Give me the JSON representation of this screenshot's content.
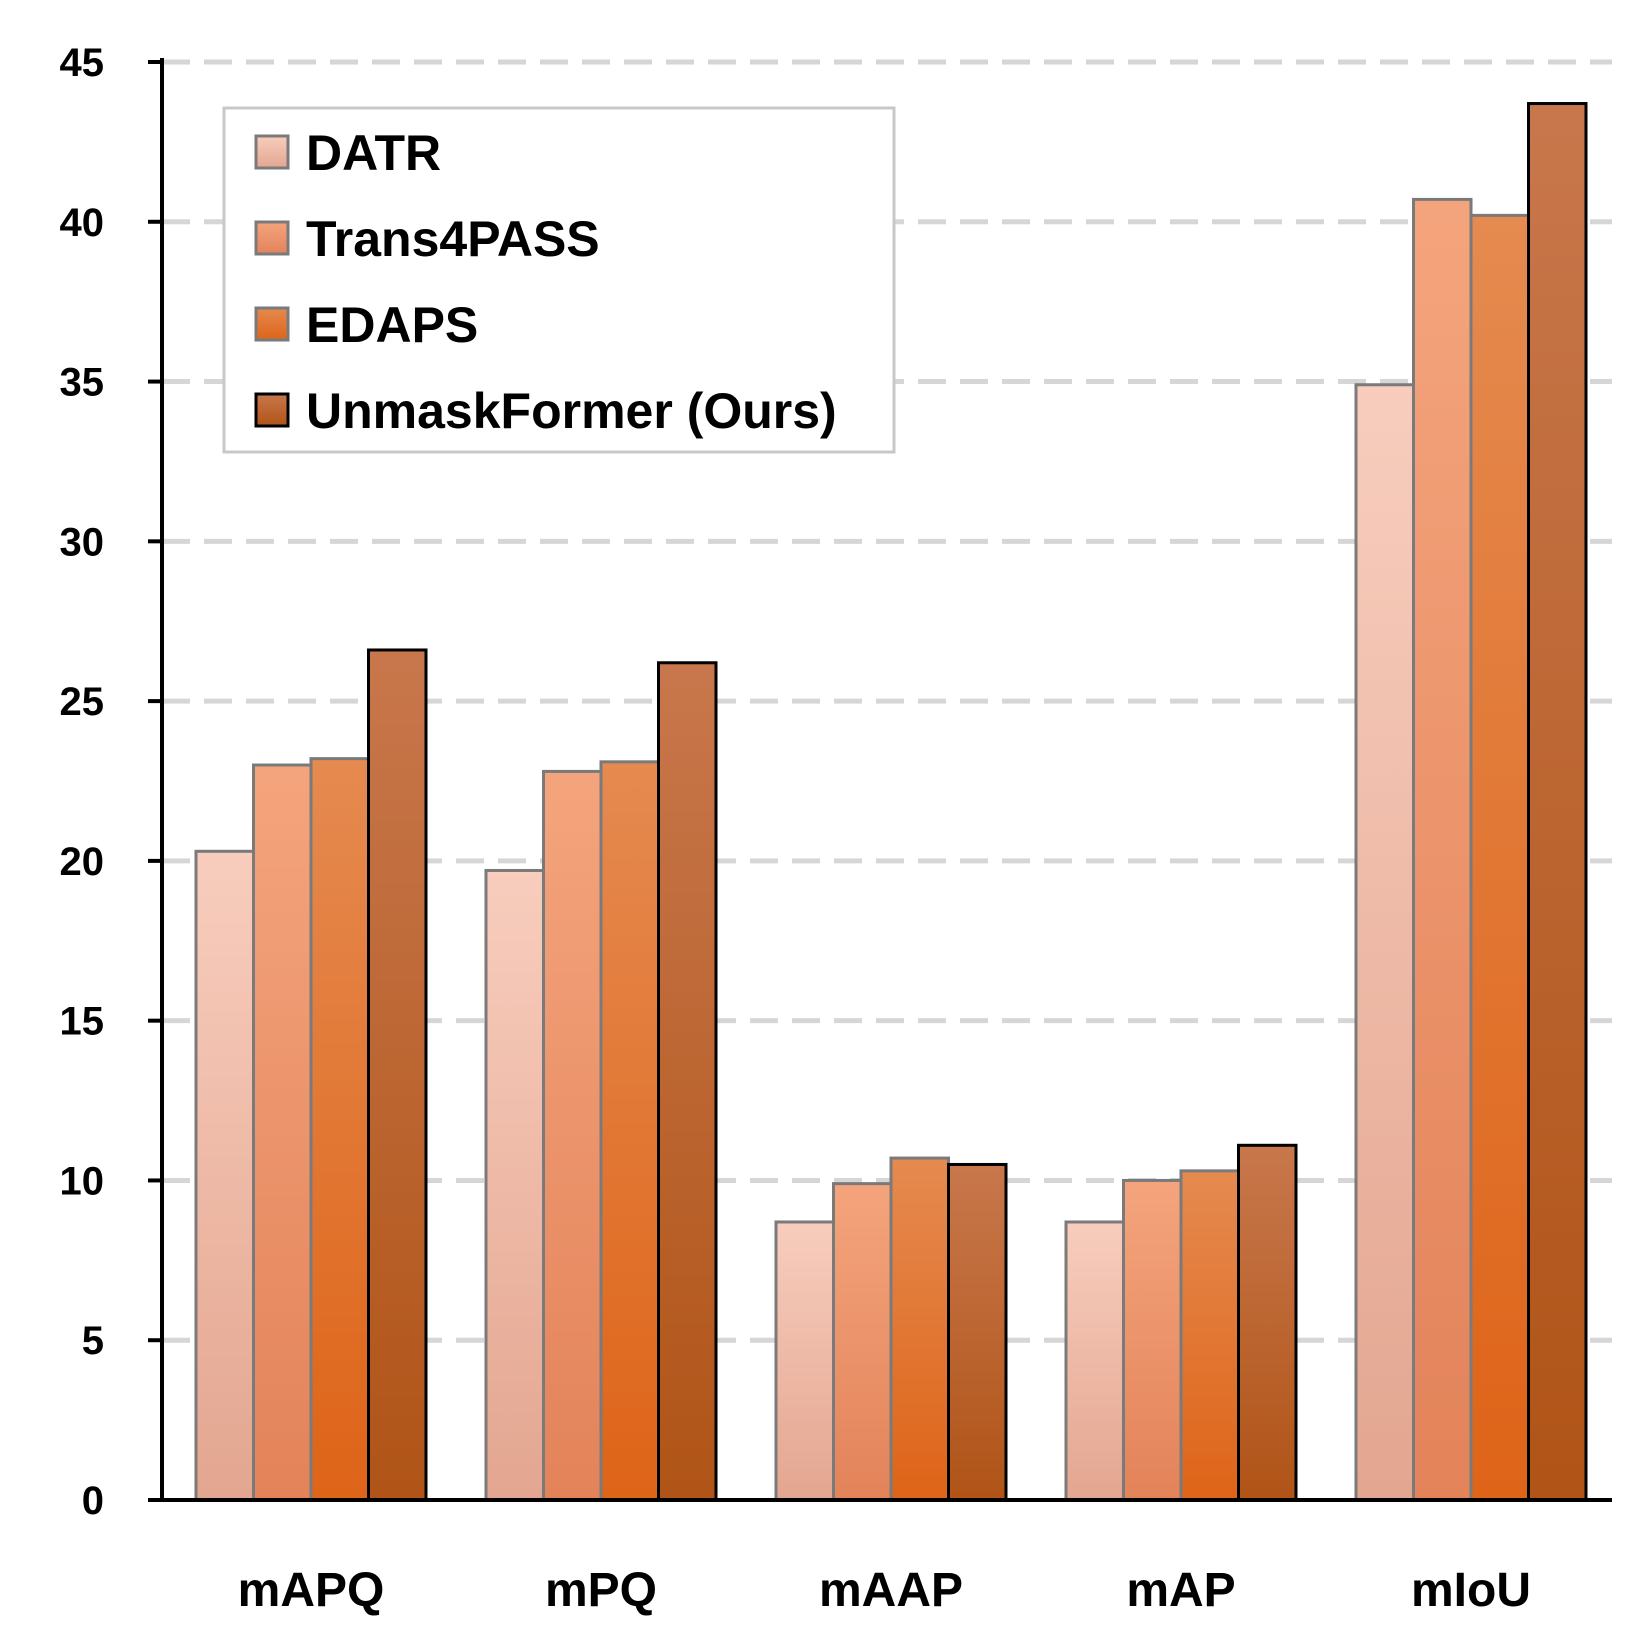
{
  "chart_data": {
    "type": "bar",
    "title": "",
    "xlabel": "",
    "ylabel": "",
    "categories": [
      "mAPQ",
      "mPQ",
      "mAAP",
      "mAP",
      "mIoU"
    ],
    "ylim": [
      0,
      45
    ],
    "yticks": [
      0,
      5,
      10,
      15,
      20,
      25,
      30,
      35,
      40,
      45
    ],
    "grid": "horizontal-dashed",
    "legend_position": "top-left",
    "series": [
      {
        "name": "DATR",
        "values": [
          20.3,
          19.7,
          8.7,
          8.7,
          34.9
        ],
        "color_top": "#f8cdbd",
        "color_bottom": "#e3a690"
      },
      {
        "name": "Trans4PASS",
        "values": [
          23.0,
          22.8,
          9.9,
          10.0,
          40.7
        ],
        "color_top": "#f4a47c",
        "color_bottom": "#e3835a"
      },
      {
        "name": "EDAPS",
        "values": [
          23.2,
          23.1,
          10.7,
          10.3,
          40.2
        ],
        "color_top": "#e58a50",
        "color_bottom": "#de6418"
      },
      {
        "name": "UnmaskFormer (Ours)",
        "values": [
          26.6,
          26.2,
          10.5,
          11.1,
          43.7
        ],
        "color_top": "#c8774c",
        "color_bottom": "#b05417"
      }
    ]
  }
}
